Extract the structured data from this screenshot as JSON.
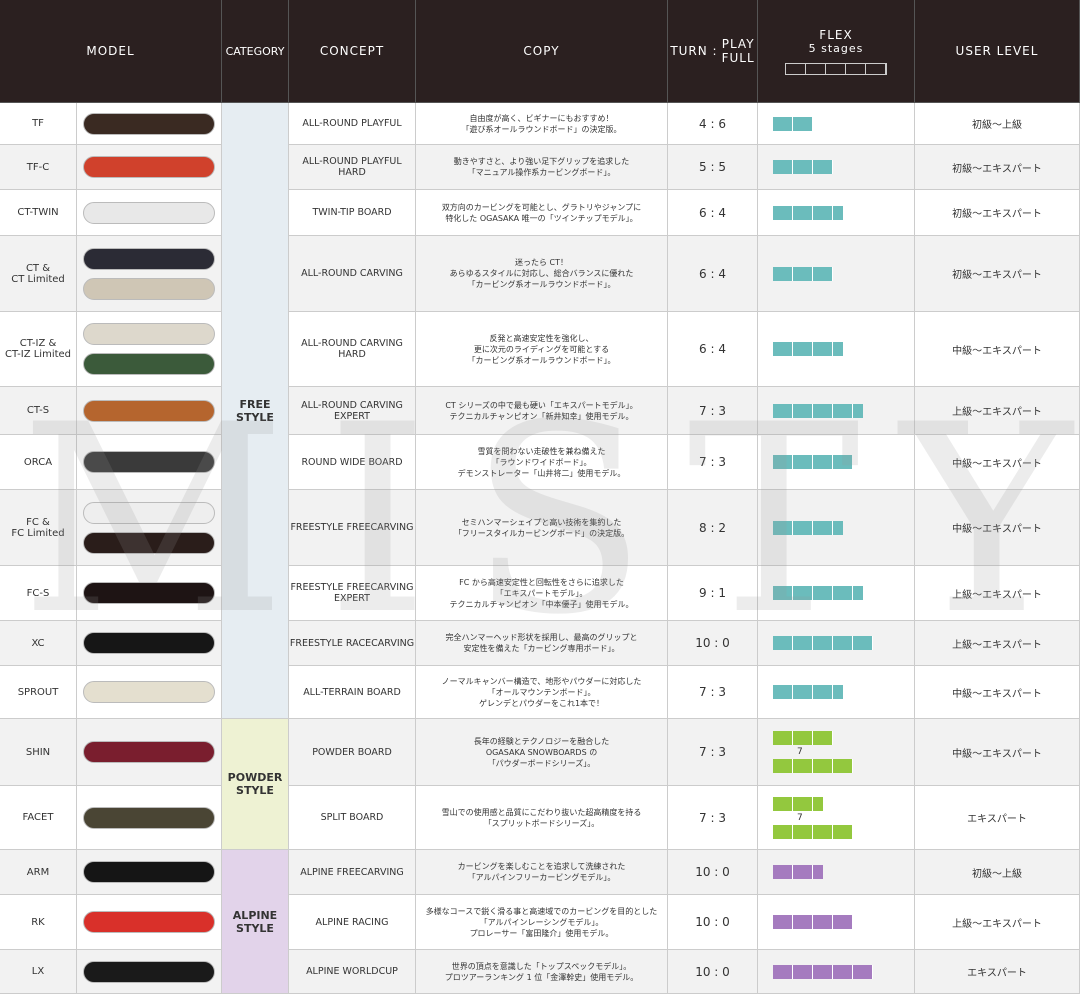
{
  "header": {
    "model": "MODEL",
    "category": "CATEGORY",
    "concept": "CONCEPT",
    "copy": "COPY",
    "turn": "TURN :",
    "play": "PLAY",
    "full": "FULL",
    "flex": "FLEX",
    "flex_stages": "5 stages",
    "user_level": "USER LEVEL"
  },
  "watermark": "MISTY",
  "categories": [
    {
      "label": "FREE\nSTYLE",
      "color": "#6bbcbc",
      "models": [
        {
          "model": "TF",
          "concept": "ALL-ROUND PLAYFUL",
          "copy": "自由度が高く、ビギナーにもおすすめ！\n「遊び系オールラウンドボード」の決定版。",
          "turn_play": "4 : 6",
          "flex": [
            2
          ],
          "user_level": "初級〜上級"
        },
        {
          "model": "TF-C",
          "concept": "ALL-ROUND PLAYFUL\nHARD",
          "copy": "動きやすさと、より強い足下グリップを追求した\n「マニュアル操作系カービングボード」。",
          "turn_play": "5 : 5",
          "flex": [
            3
          ],
          "user_level": "初級〜エキスパート"
        },
        {
          "model": "CT-TWIN",
          "concept": "TWIN-TIP BOARD",
          "copy": "双方向のカービングを可能とし、グラトリやジャンプに\n特化した OGASAKA 唯一の「ツインチップモデル」。",
          "turn_play": "6 : 4",
          "flex": [
            3.5
          ],
          "user_level": "初級〜エキスパート"
        },
        {
          "model": "CT &\nCT Limited",
          "concept": "ALL-ROUND CARVING",
          "copy": "迷ったら CT！\nあらゆるスタイルに対応し、総合バランスに優れた\n「カービング系オールラウンドボード」。",
          "turn_play": "6 : 4",
          "flex": [
            3
          ],
          "user_level": "初級〜エキスパート"
        },
        {
          "model": "CT-IZ &\nCT-IZ Limited",
          "concept": "ALL-ROUND CARVING\nHARD",
          "copy": "反発と高速安定性を強化し、\n更に次元のライディングを可能とする\n「カービング系オールラウンドボード」。",
          "turn_play": "6 : 4",
          "flex": [
            3.5
          ],
          "user_level": "中級〜エキスパート"
        },
        {
          "model": "CT-S",
          "concept": "ALL-ROUND CARVING\nEXPERT",
          "copy": "CT シリーズの中で最も硬い「エキスパートモデル」。\nテクニカルチャンピオン「新井知幸」使用モデル。",
          "turn_play": "7 : 3",
          "flex": [
            4.5
          ],
          "user_level": "上級〜エキスパート"
        },
        {
          "model": "ORCA",
          "concept": "ROUND WIDE BOARD",
          "copy": "雪質を問わない走破性を兼ね備えた\n「ラウンドワイドボード」。\nデモンストレーター「山井将二」使用モデル。",
          "turn_play": "7 : 3",
          "flex": [
            4
          ],
          "user_level": "中級〜エキスパート"
        },
        {
          "model": "FC &\nFC Limited",
          "concept": "FREESTYLE FREECARVING",
          "copy": "セミハンマーシェイプと高い技術を集約した\n「フリースタイルカービングボード」の決定版。",
          "turn_play": "8 : 2",
          "flex": [
            3.5
          ],
          "user_level": "中級〜エキスパート"
        },
        {
          "model": "FC-S",
          "concept": "FREESTYLE FREECARVING\nEXPERT",
          "copy": "FC から高速安定性と回転性をさらに追求した\n「エキスパートモデル」。\nテクニカルチャンピオン「中本優子」使用モデル。",
          "turn_play": "9 : 1",
          "flex": [
            4.5
          ],
          "user_level": "上級〜エキスパート"
        },
        {
          "model": "XC",
          "concept": "FREESTYLE RACECARVING",
          "copy": "完全ハンマーヘッド形状を採用し、最高のグリップと\n安定性を備えた「カービング専用ボード」。",
          "turn_play": "10 : 0",
          "flex": [
            5
          ],
          "user_level": "上級〜エキスパート"
        },
        {
          "model": "SPROUT",
          "concept": "ALL-TERRAIN BOARD",
          "copy": "ノーマルキャンバー構造で、地形やパウダーに対応した\n「オールマウンテンボード」。\nゲレンデとパウダーをこれ1本で！",
          "turn_play": "7 : 3",
          "flex": [
            3.5
          ],
          "user_level": "中級〜エキスパート"
        }
      ]
    },
    {
      "label": "POWDER\nSTYLE",
      "color": "#93c83e",
      "models": [
        {
          "model": "SHIN",
          "concept": "POWDER BOARD",
          "copy": "長年の経験とテクノロジーを融合した\nOGASAKA SNOWBOARDS の\n「パウダーボードシリーズ」。",
          "turn_play": "7 : 3",
          "flex": [
            3,
            4
          ],
          "flex_separator": "7",
          "user_level": "中級〜エキスパート"
        },
        {
          "model": "FACET",
          "concept": "SPLIT BOARD",
          "copy": "雪山での使用感と品質にこだわり抜いた超高精度を持る\n「スプリットボードシリーズ」。",
          "turn_play": "7 : 3",
          "flex": [
            2.5,
            4
          ],
          "flex_separator": "7",
          "user_level": "エキスパート"
        }
      ]
    },
    {
      "label": "ALPINE\nSTYLE",
      "color": "#a57bbf",
      "models": [
        {
          "model": "ARM",
          "concept": "ALPINE FREECARVING",
          "copy": "カービングを楽しむことを追求して洗練された\n「アルパインフリーカービングモデル」。",
          "turn_play": "10 : 0",
          "flex": [
            2.5
          ],
          "user_level": "初級〜上級"
        },
        {
          "model": "RK",
          "concept": "ALPINE RACING",
          "copy": "多様なコースで鋭く滑る事と高速域でのカービングを目的とした\n「アルパインレーシングモデル」。\nプロレーサー「富田隆介」使用モデル。",
          "turn_play": "10 : 0",
          "flex": [
            4
          ],
          "user_level": "上級〜エキスパート"
        },
        {
          "model": "LX",
          "concept": "ALPINE WORLDCUP",
          "copy": "世界の頂点を意識した「トップスペックモデル」。\nプロツアーランキング 1 位「金澤幹史」使用モデル。",
          "turn_play": "10 : 0",
          "flex": [
            5
          ],
          "user_level": "エキスパート"
        }
      ]
    }
  ]
}
